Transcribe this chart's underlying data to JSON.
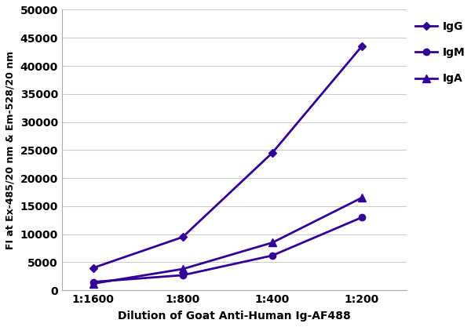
{
  "x_labels": [
    "1:1600",
    "1:800",
    "1:400",
    "1:200"
  ],
  "x_values": [
    1,
    2,
    3,
    4
  ],
  "IgG": [
    4000,
    9500,
    24500,
    43500
  ],
  "IgM": [
    1500,
    2700,
    6200,
    13000
  ],
  "IgA": [
    1200,
    3800,
    8500,
    16500
  ],
  "color": "#330099",
  "ylabel": "FI at Ex-485/20 nm & Em-528/20 nm",
  "xlabel": "Dilution of Goat Anti-Human Ig-AF488",
  "ylim": [
    0,
    50000
  ],
  "yticks": [
    0,
    5000,
    10000,
    15000,
    20000,
    25000,
    30000,
    35000,
    40000,
    45000,
    50000
  ],
  "ytick_labels": [
    "0",
    "5000",
    "10000",
    "15000",
    "20000",
    "25000",
    "30000",
    "35000",
    "40000",
    "45000",
    "50000"
  ],
  "legend_labels": [
    "IgG",
    "IgM",
    "IgA"
  ],
  "background_color": "#ffffff",
  "grid_color": "#cccccc"
}
